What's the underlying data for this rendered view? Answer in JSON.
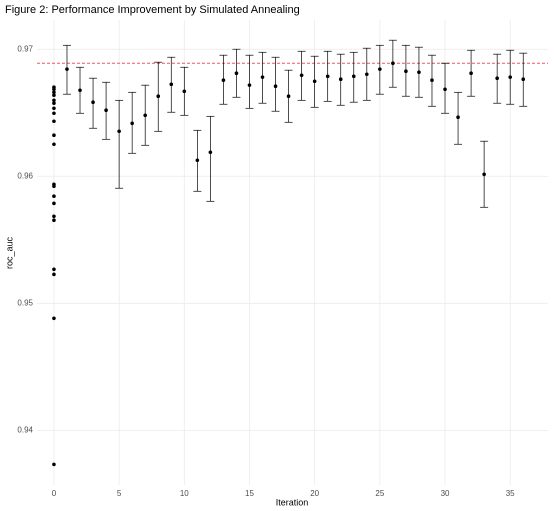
{
  "chart_data": {
    "type": "scatter",
    "title": "Figure 2: Performance Improvement by Simulated Annealing",
    "xlabel": "Iteration",
    "ylabel": "roc_auc",
    "xlim": [
      -1.3,
      37.9
    ],
    "ylim": [
      0.9357,
      0.9723
    ],
    "xticks": [
      0,
      5,
      10,
      15,
      20,
      25,
      30,
      35
    ],
    "yticks": [
      0.94,
      0.95,
      0.96,
      0.97
    ],
    "grid": true,
    "color": "#000000",
    "series": [
      {
        "x": [
          0,
          0,
          0,
          0,
          0,
          0,
          0,
          0,
          0,
          0,
          0,
          0,
          0,
          0,
          0,
          0,
          0,
          0,
          0,
          0,
          0
        ],
        "values": [
          0.96701,
          0.96685,
          0.96661,
          0.96638,
          0.96598,
          0.96575,
          0.96535,
          0.96496,
          0.96433,
          0.96323,
          0.96252,
          0.95937,
          0.95921,
          0.95843,
          0.95787,
          0.95685,
          0.95654,
          0.95268,
          0.95228,
          0.94882,
          0.93732
        ]
      },
      {
        "x": [
          1,
          2,
          3,
          4,
          5,
          6,
          7,
          8,
          9,
          10,
          11,
          12,
          13,
          14,
          15,
          16,
          17,
          18,
          19,
          20,
          21,
          22,
          23,
          24,
          25,
          26,
          27,
          28,
          29,
          30,
          31,
          32,
          33,
          34,
          35,
          36
        ],
        "values": [
          0.96843,
          0.96677,
          0.96583,
          0.9652,
          0.96354,
          0.96417,
          0.9648,
          0.9663,
          0.96724,
          0.96669,
          0.96126,
          0.96189,
          0.96756,
          0.96811,
          0.96717,
          0.9678,
          0.96709,
          0.9663,
          0.96795,
          0.96748,
          0.96787,
          0.96764,
          0.96787,
          0.96803,
          0.96843,
          0.9689,
          0.96827,
          0.96819,
          0.96756,
          0.96685,
          0.96465,
          0.96811,
          0.96016,
          0.96772,
          0.9678,
          0.96764
        ],
        "lower": [
          0.96646,
          0.96496,
          0.96378,
          0.96291,
          0.95906,
          0.96181,
          0.96244,
          0.96354,
          0.96504,
          0.9648,
          0.95882,
          0.95803,
          0.96567,
          0.96622,
          0.96535,
          0.96575,
          0.96512,
          0.96425,
          0.96598,
          0.96543,
          0.9659,
          0.96559,
          0.96583,
          0.96598,
          0.96646,
          0.96701,
          0.9663,
          0.96622,
          0.96551,
          0.96496,
          0.96252,
          0.9663,
          0.95756,
          0.96575,
          0.96567,
          0.96551
        ],
        "upper": [
          0.97031,
          0.96858,
          0.96772,
          0.9674,
          0.96598,
          0.96661,
          0.96717,
          0.96898,
          0.96937,
          0.96858,
          0.96362,
          0.96472,
          0.96953,
          0.97,
          0.96953,
          0.96976,
          0.96937,
          0.96835,
          0.96984,
          0.96945,
          0.96984,
          0.96961,
          0.96976,
          0.97008,
          0.97031,
          0.97071,
          0.97031,
          0.97016,
          0.96953,
          0.9689,
          0.96661,
          0.96992,
          0.96276,
          0.96961,
          0.96992,
          0.96969
        ]
      }
    ],
    "hline": {
      "value": 0.9689,
      "color": "#f0595b"
    }
  }
}
